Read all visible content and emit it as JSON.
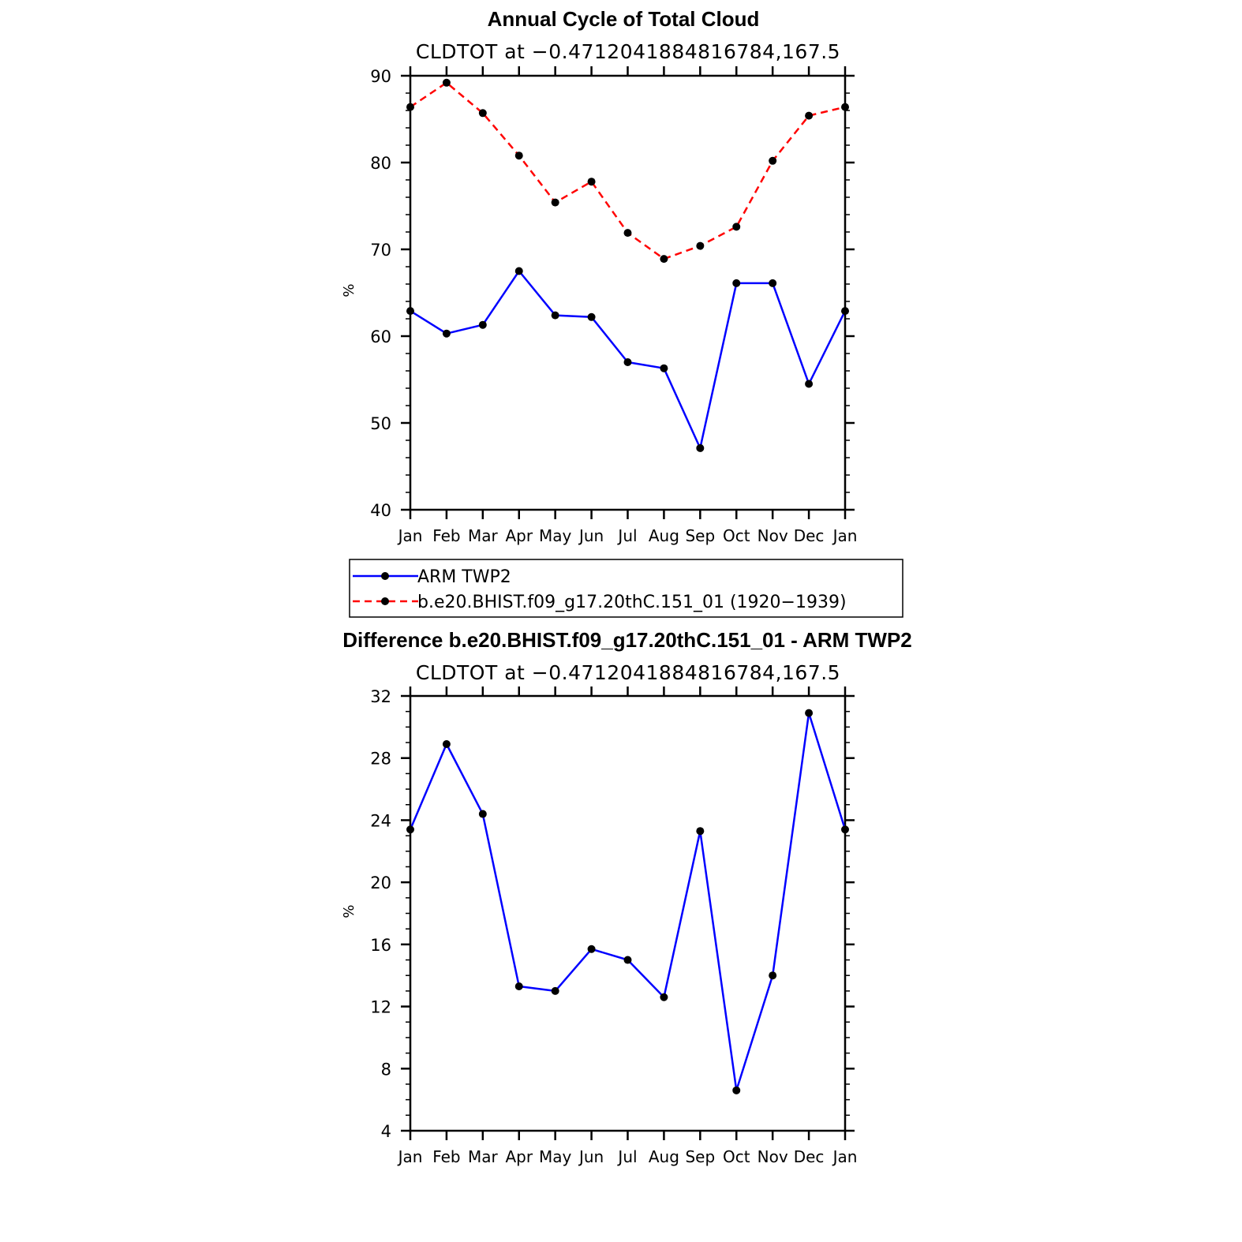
{
  "chart_data": [
    {
      "type": "line",
      "title": "Annual Cycle of Total Cloud",
      "subtitle": "CLDTOT at −0.4712041884816784,167.5",
      "ylabel": "%",
      "xlabel": "",
      "categories": [
        "Jan",
        "Feb",
        "Mar",
        "Apr",
        "May",
        "Jun",
        "Jul",
        "Aug",
        "Sep",
        "Oct",
        "Nov",
        "Dec",
        "Jan"
      ],
      "ylim": [
        40,
        90
      ],
      "yticks": [
        40,
        50,
        60,
        70,
        80,
        90
      ],
      "series": [
        {
          "name": "ARM TWP2",
          "color": "#0000ff",
          "dash": "solid",
          "values": [
            62.9,
            60.3,
            61.3,
            67.5,
            62.4,
            62.2,
            57.0,
            56.3,
            47.1,
            66.1,
            66.1,
            54.5,
            62.9
          ]
        },
        {
          "name": "b.e20.BHIST.f09_g17.20thC.151_01 (1920−1939)",
          "color": "#ff0000",
          "dash": "dashed",
          "values": [
            86.4,
            89.2,
            85.7,
            80.8,
            75.4,
            77.8,
            71.9,
            68.9,
            70.4,
            72.6,
            80.2,
            85.4,
            86.4
          ]
        }
      ],
      "legend": "below"
    },
    {
      "type": "line",
      "title": "Difference b.e20.BHIST.f09_g17.20thC.151_01 - ARM TWP2",
      "subtitle": "CLDTOT at −0.4712041884816784,167.5",
      "ylabel": "%",
      "xlabel": "",
      "categories": [
        "Jan",
        "Feb",
        "Mar",
        "Apr",
        "May",
        "Jun",
        "Jul",
        "Aug",
        "Sep",
        "Oct",
        "Nov",
        "Dec",
        "Jan"
      ],
      "ylim": [
        4,
        32
      ],
      "yticks": [
        4,
        8,
        12,
        16,
        20,
        24,
        28,
        32
      ],
      "series": [
        {
          "color": "#0000ff",
          "dash": "solid",
          "values": [
            23.4,
            28.9,
            24.4,
            13.3,
            13.0,
            15.7,
            15.0,
            12.6,
            23.3,
            6.6,
            14.0,
            30.9,
            23.4
          ]
        }
      ]
    }
  ]
}
